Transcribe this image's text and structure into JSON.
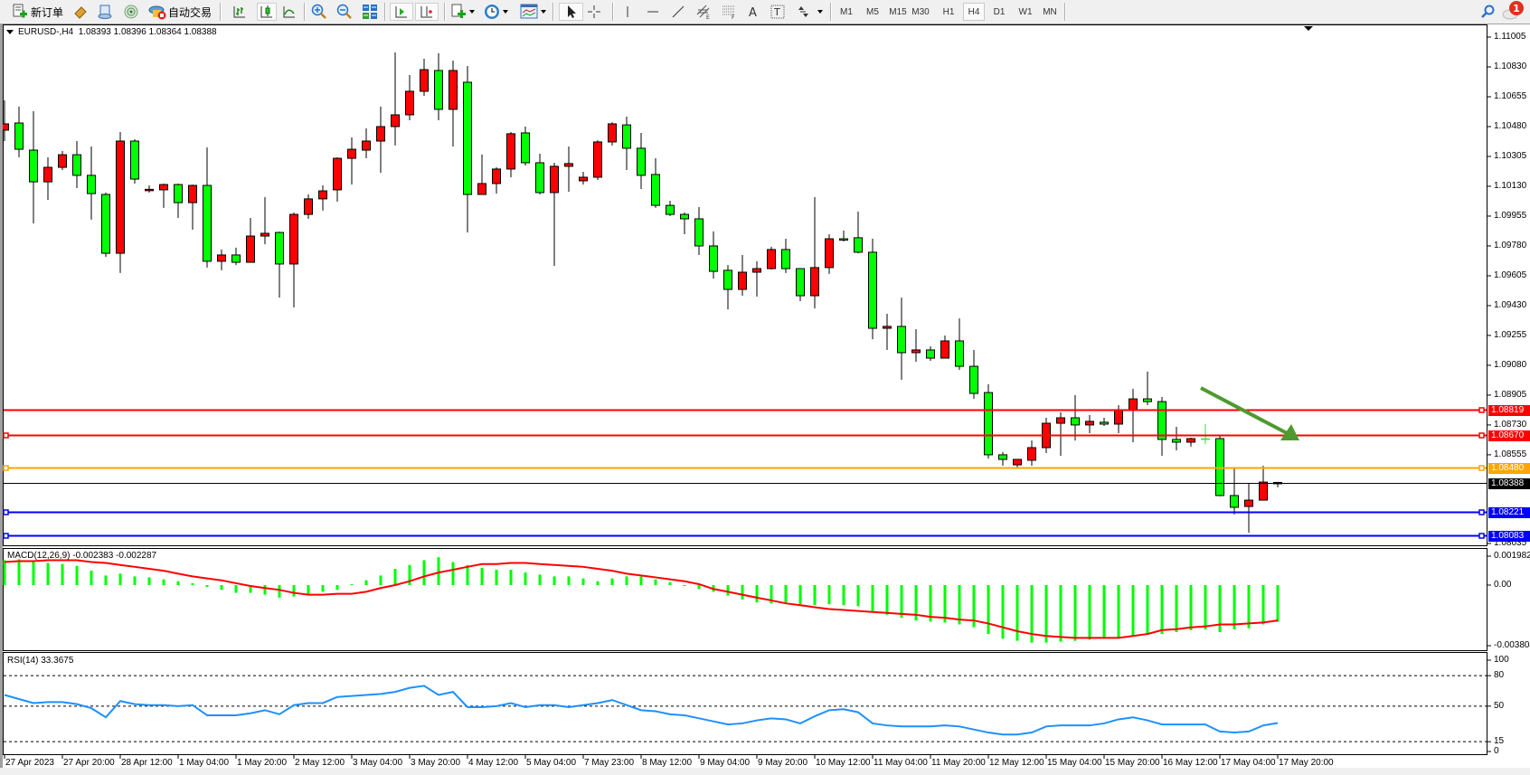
{
  "toolbar": {
    "new_order_label": "新订单",
    "auto_trading_label": "自动交易",
    "timeframes": [
      "M1",
      "M5",
      "M15",
      "M30",
      "H1",
      "H4",
      "D1",
      "W1",
      "MN"
    ],
    "active_timeframe": "H4",
    "notification_count": "1"
  },
  "chart": {
    "symbol_header": "EURUSD-,H4",
    "ohlc_header": "1.08393 1.08396 1.08364 1.08388"
  },
  "chart_data": [
    {
      "type": "candlestick",
      "symbol": "EURUSD-",
      "timeframe": "H4",
      "bull_color": "#ff0000",
      "bear_color": "#00ff00",
      "ylim": [
        1.0803,
        1.1107
      ],
      "y_ticks": [
        "1.11005",
        "1.10830",
        "1.10655",
        "1.10480",
        "1.10305",
        "1.10130",
        "1.09955",
        "1.09780",
        "1.09605",
        "1.09430",
        "1.09255",
        "1.09080",
        "1.08905",
        "1.08730",
        "1.08555",
        "1.08035"
      ],
      "x_tick_labels": [
        "27 Apr 2023",
        "27 Apr 20:00",
        "28 Apr 12:00",
        "1 May 04:00",
        "1 May 20:00",
        "2 May 12:00",
        "3 May 04:00",
        "3 May 20:00",
        "4 May 12:00",
        "5 May 04:00",
        "7 May 23:00",
        "8 May 12:00",
        "9 May 04:00",
        "9 May 20:00",
        "10 May 12:00",
        "11 May 04:00",
        "11 May 20:00",
        "12 May 12:00",
        "15 May 04:00",
        "15 May 20:00",
        "16 May 12:00",
        "17 May 04:00",
        "17 May 20:00"
      ],
      "ohlc": [
        [
          1.10459,
          1.10634,
          1.10395,
          1.10496
        ],
        [
          1.10501,
          1.10597,
          1.103,
          1.10347
        ],
        [
          1.10342,
          1.1057,
          1.09912,
          1.10156
        ],
        [
          1.10156,
          1.103,
          1.1005,
          1.10241
        ],
        [
          1.10241,
          1.10337,
          1.10225,
          1.10315
        ],
        [
          1.10315,
          1.10395,
          1.10119,
          1.10194
        ],
        [
          1.10194,
          1.10363,
          1.09934,
          1.10087
        ],
        [
          1.10082,
          1.10093,
          1.09716,
          1.09737
        ],
        [
          1.09737,
          1.10448,
          1.09621,
          1.10395
        ],
        [
          1.10395,
          1.10406,
          1.10146,
          1.10172
        ],
        [
          1.10109,
          1.10135,
          1.10093,
          1.10112
        ],
        [
          1.10109,
          1.10146,
          1.10003,
          1.1014
        ],
        [
          1.1014,
          1.10146,
          1.09944,
          1.10034
        ],
        [
          1.10034,
          1.1014,
          1.09875,
          1.10135
        ],
        [
          1.10135,
          1.10358,
          1.09653,
          1.0969
        ],
        [
          1.0969,
          1.09759,
          1.09637,
          1.09727
        ],
        [
          1.09727,
          1.0977,
          1.09668,
          1.09684
        ],
        [
          1.09684,
          1.09944,
          1.09684,
          1.09838
        ],
        [
          1.09838,
          1.10066,
          1.0979,
          1.09854
        ],
        [
          1.09859,
          1.09864,
          1.09477,
          1.09674
        ],
        [
          1.09674,
          1.09976,
          1.09419,
          1.09965
        ],
        [
          1.09965,
          1.10082,
          1.09939,
          1.10056
        ],
        [
          1.10056,
          1.10135,
          1.09987,
          1.10103
        ],
        [
          1.10109,
          1.103,
          1.1004,
          1.10294
        ],
        [
          1.10294,
          1.10416,
          1.1014,
          1.10347
        ],
        [
          1.10342,
          1.10469,
          1.10294,
          1.10395
        ],
        [
          1.10395,
          1.10597,
          1.10209,
          1.1048
        ],
        [
          1.1048,
          1.10915,
          1.10369,
          1.10549
        ],
        [
          1.10549,
          1.10782,
          1.10517,
          1.10687
        ],
        [
          1.10687,
          1.10878,
          1.1066,
          1.10814
        ],
        [
          1.10809,
          1.1091,
          1.10517,
          1.10581
        ],
        [
          1.10581,
          1.10867,
          1.10363,
          1.10809
        ],
        [
          1.1074,
          1.10835,
          1.09859,
          1.10082
        ],
        [
          1.10082,
          1.10316,
          1.10082,
          1.10146
        ],
        [
          1.10146,
          1.10241,
          1.10087,
          1.10231
        ],
        [
          1.10231,
          1.10448,
          1.10183,
          1.10438
        ],
        [
          1.10443,
          1.1048,
          1.10252,
          1.10268
        ],
        [
          1.10268,
          1.10321,
          1.10082,
          1.10093
        ],
        [
          1.10093,
          1.10268,
          1.09663,
          1.10247
        ],
        [
          1.10247,
          1.10363,
          1.10098,
          1.10263
        ],
        [
          1.10162,
          1.10215,
          1.1014,
          1.10183
        ],
        [
          1.10183,
          1.104,
          1.10167,
          1.1039
        ],
        [
          1.1039,
          1.10506,
          1.10369,
          1.10496
        ],
        [
          1.1049,
          1.10538,
          1.10225,
          1.10353
        ],
        [
          1.10353,
          1.10443,
          1.10114,
          1.10194
        ],
        [
          1.10199,
          1.10294,
          1.10003,
          1.10018
        ],
        [
          1.10018,
          1.10045,
          1.09955,
          1.09965
        ],
        [
          1.09965,
          1.09976,
          1.09849,
          1.09939
        ],
        [
          1.09939,
          1.10008,
          1.09727,
          1.0978
        ],
        [
          1.0978,
          1.09865,
          1.09589,
          1.09631
        ],
        [
          1.09637,
          1.09668,
          1.09408,
          1.09525
        ],
        [
          1.09525,
          1.09727,
          1.09488,
          1.09626
        ],
        [
          1.09626,
          1.0969,
          1.09483,
          1.09647
        ],
        [
          1.09647,
          1.09775,
          1.09642,
          1.09759
        ],
        [
          1.09759,
          1.09822,
          1.09621,
          1.09647
        ],
        [
          1.09647,
          1.09647,
          1.09456,
          1.09488
        ],
        [
          1.09488,
          1.10066,
          1.09414,
          1.09653
        ],
        [
          1.09653,
          1.09849,
          1.09616,
          1.09822
        ],
        [
          1.09822,
          1.0987,
          1.09806,
          1.09819
        ],
        [
          1.09828,
          1.09981,
          1.09737,
          1.09743
        ],
        [
          1.09743,
          1.09822,
          1.09233,
          1.09297
        ],
        [
          1.09297,
          1.09382,
          1.0917,
          1.09308
        ],
        [
          1.09308,
          1.09477,
          1.08995,
          1.09154
        ],
        [
          1.09154,
          1.09292,
          1.09101,
          1.0917
        ],
        [
          1.0917,
          1.09191,
          1.09106,
          1.09122
        ],
        [
          1.09122,
          1.09255,
          1.09122,
          1.09223
        ],
        [
          1.09223,
          1.09355,
          1.09053,
          1.09074
        ],
        [
          1.09074,
          1.0917,
          1.08883,
          1.08915
        ],
        [
          1.0892,
          1.08968,
          1.08533,
          1.08555
        ],
        [
          1.08555,
          1.08571,
          1.08491,
          1.08528
        ],
        [
          1.08496,
          1.08528,
          1.08475,
          1.08528
        ],
        [
          1.08523,
          1.08639,
          1.08491,
          1.08597
        ],
        [
          1.08597,
          1.08772,
          1.08565,
          1.0874
        ],
        [
          1.0874,
          1.08804,
          1.08549,
          1.08772
        ],
        [
          1.08772,
          1.08905,
          1.08639,
          1.0873
        ],
        [
          1.0873,
          1.08788,
          1.08682,
          1.08751
        ],
        [
          1.08746,
          1.08772,
          1.08724,
          1.08735
        ],
        [
          1.08735,
          1.08846,
          1.08682,
          1.0882
        ],
        [
          1.0882,
          1.08942,
          1.08629,
          1.08883
        ],
        [
          1.08883,
          1.09043,
          1.08846,
          1.08867
        ],
        [
          1.08867,
          1.08894,
          1.08549,
          1.08645
        ],
        [
          1.08645,
          1.08719,
          1.08581,
          1.08629
        ],
        [
          1.08629,
          1.08655,
          1.08603,
          1.0865
        ],
        [
          1.08647,
          1.08735,
          1.08618,
          1.08647
        ],
        [
          1.0865,
          1.08666,
          1.08311,
          1.08316
        ],
        [
          1.08316,
          1.08475,
          1.08205,
          1.08247
        ],
        [
          1.08252,
          1.0839,
          1.08098,
          1.08289
        ],
        [
          1.08289,
          1.08491,
          1.08289,
          1.08395
        ],
        [
          1.08393,
          1.08396,
          1.08364,
          1.08388
        ]
      ],
      "horizontal_lines": [
        {
          "price": 1.08819,
          "label": "1.08819",
          "color": "#ff0000"
        },
        {
          "price": 1.0867,
          "label": "1.08670",
          "color": "#ff0000"
        },
        {
          "price": 1.0848,
          "label": "1.08480",
          "color": "#ffa500"
        },
        {
          "price": 1.08388,
          "label": "1.08388",
          "color": "#000000"
        },
        {
          "price": 1.08221,
          "label": "1.08221",
          "color": "#0000ff"
        },
        {
          "price": 1.08083,
          "label": "1.08083",
          "color": "#0000ff"
        }
      ],
      "arrow": {
        "color": "#4e9a2e",
        "direction": "down-right"
      }
    },
    {
      "type": "bar+line",
      "title": "MACD(12,26,9)",
      "main_value": "-0.002383",
      "signal_value": "-0.002287",
      "histogram_color": "#00ff00",
      "signal_color": "#ff0000",
      "y_ticks": [
        "0.001982",
        "0.00",
        "-0.003804"
      ],
      "ylim": [
        -0.003804,
        0.001982
      ],
      "histogram": [
        0.00161,
        0.00167,
        0.00149,
        0.00143,
        0.00136,
        0.00124,
        0.00093,
        0.00062,
        0.00074,
        0.00056,
        0.0005,
        0.00037,
        0.00025,
        0.00012,
        -0.00012,
        -0.00031,
        -0.0005,
        -0.0005,
        -0.00062,
        -0.00081,
        -0.00074,
        -0.00056,
        -0.00043,
        -0.00031,
        6e-05,
        0.00031,
        0.00062,
        0.00105,
        0.0013,
        0.00161,
        0.0018,
        0.00149,
        0.0013,
        0.00112,
        0.00099,
        0.00099,
        0.00081,
        0.00068,
        0.00056,
        0.00056,
        0.00043,
        0.00025,
        0.00043,
        0.00056,
        0.00056,
        0.00037,
        0.00019,
        -6e-05,
        -0.00025,
        -0.00043,
        -0.00068,
        -0.00093,
        -0.00112,
        -0.00118,
        -0.00112,
        -0.00124,
        -0.0013,
        -0.00124,
        -0.0013,
        -0.00136,
        -0.00167,
        -0.00192,
        -0.00211,
        -0.00229,
        -0.00236,
        -0.00242,
        -0.00254,
        -0.00273,
        -0.00316,
        -0.00347,
        -0.0036,
        -0.00372,
        -0.00372,
        -0.00366,
        -0.0036,
        -0.00353,
        -0.00347,
        -0.00341,
        -0.00329,
        -0.00316,
        -0.00316,
        -0.00304,
        -0.00291,
        -0.00285,
        -0.00304,
        -0.00285,
        -0.00279,
        -0.00254,
        -0.002383
      ],
      "signal": [
        0.00149,
        0.00155,
        0.00155,
        0.00161,
        0.00161,
        0.00161,
        0.00149,
        0.00143,
        0.0013,
        0.00118,
        0.00105,
        0.00093,
        0.00074,
        0.00056,
        0.00043,
        0.00031,
        0.00012,
        -6e-05,
        -0.00019,
        -0.00031,
        -0.0005,
        -0.00062,
        -0.00062,
        -0.00056,
        -0.00056,
        -0.00043,
        -0.00019,
        0.0,
        0.00025,
        0.00056,
        0.00081,
        0.00099,
        0.00118,
        0.00136,
        0.00136,
        0.00143,
        0.00143,
        0.00136,
        0.0013,
        0.00124,
        0.00118,
        0.00105,
        0.00093,
        0.00074,
        0.00062,
        0.0005,
        0.00037,
        0.00025,
        6e-05,
        -0.00025,
        -0.00043,
        -0.00062,
        -0.00081,
        -0.00099,
        -0.00118,
        -0.0013,
        -0.00143,
        -0.00155,
        -0.00161,
        -0.00167,
        -0.00174,
        -0.0018,
        -0.00186,
        -0.00192,
        -0.00205,
        -0.00211,
        -0.00223,
        -0.00229,
        -0.00248,
        -0.00273,
        -0.00298,
        -0.00316,
        -0.00329,
        -0.00335,
        -0.00341,
        -0.00341,
        -0.00341,
        -0.00341,
        -0.00329,
        -0.00316,
        -0.00291,
        -0.00285,
        -0.00273,
        -0.00267,
        -0.00254,
        -0.00254,
        -0.00248,
        -0.00242,
        -0.002287
      ]
    },
    {
      "type": "line",
      "title": "RSI(14)",
      "value": "33.3675",
      "line_color": "#1e90ff",
      "y_ticks": [
        "100",
        "80",
        "50",
        "15",
        "0"
      ],
      "levels": [
        80,
        50,
        15
      ],
      "ylim": [
        0,
        100
      ],
      "values": [
        61,
        57,
        53,
        54,
        54,
        52,
        48,
        39,
        55,
        52,
        51,
        51,
        50,
        51,
        41,
        41,
        41,
        43,
        46,
        42,
        51,
        53,
        53,
        59,
        60,
        61,
        62,
        64,
        68,
        70,
        61,
        64,
        49,
        49,
        50,
        53,
        49,
        51,
        51,
        49,
        51,
        53,
        56,
        51,
        46,
        45,
        42,
        41,
        38,
        35,
        32,
        33,
        36,
        38,
        37,
        33,
        40,
        46,
        47,
        44,
        33,
        31,
        30,
        30,
        30,
        31,
        30,
        27,
        24,
        22,
        22,
        24,
        30,
        31,
        31,
        31,
        33,
        37,
        39,
        36,
        32,
        32,
        32,
        32,
        25,
        24,
        25,
        31,
        33.3675
      ]
    }
  ]
}
